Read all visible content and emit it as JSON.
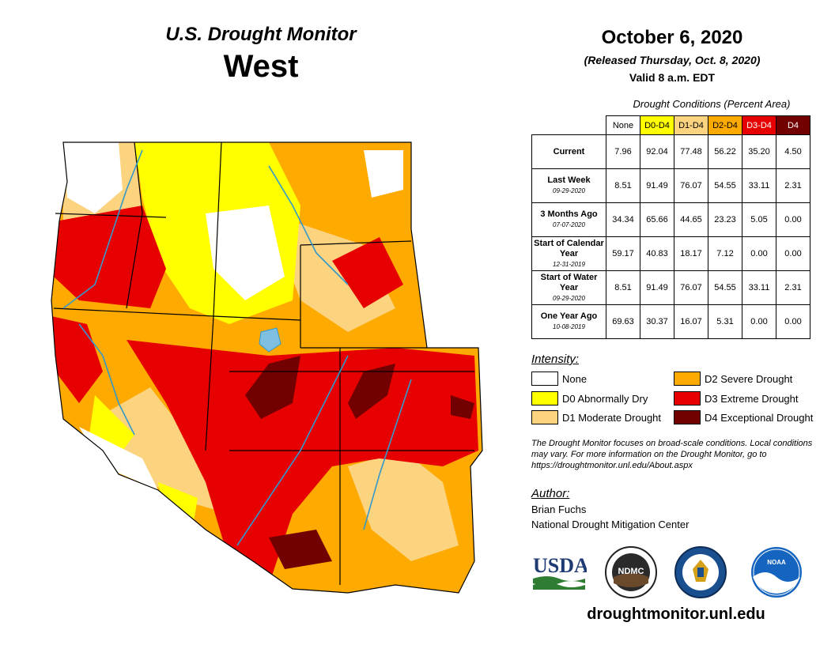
{
  "header": {
    "program": "U.S. Drought Monitor",
    "region": "West"
  },
  "date": {
    "main": "October 6, 2020",
    "released": "(Released Thursday, Oct. 8, 2020)",
    "valid": "Valid 8 a.m. EDT"
  },
  "stats": {
    "caption": "Drought Conditions (Percent Area)",
    "columns": [
      "None",
      "D0-D4",
      "D1-D4",
      "D2-D4",
      "D3-D4",
      "D4"
    ],
    "column_colors": [
      "#ffffff",
      "#ffff00",
      "#fcd37f",
      "#ffaa00",
      "#e60000",
      "#730000"
    ],
    "rows": [
      {
        "label": "Current",
        "date": "",
        "values": [
          "7.96",
          "92.04",
          "77.48",
          "56.22",
          "35.20",
          "4.50"
        ]
      },
      {
        "label": "Last Week",
        "date": "09-29-2020",
        "values": [
          "8.51",
          "91.49",
          "76.07",
          "54.55",
          "33.11",
          "2.31"
        ]
      },
      {
        "label": "3 Months Ago",
        "date": "07-07-2020",
        "values": [
          "34.34",
          "65.66",
          "44.65",
          "23.23",
          "5.05",
          "0.00"
        ]
      },
      {
        "label": "Start of Calendar Year",
        "date": "12-31-2019",
        "values": [
          "59.17",
          "40.83",
          "18.17",
          "7.12",
          "0.00",
          "0.00"
        ]
      },
      {
        "label": "Start of Water Year",
        "date": "09-29-2020",
        "values": [
          "8.51",
          "91.49",
          "76.07",
          "54.55",
          "33.11",
          "2.31"
        ]
      },
      {
        "label": "One Year Ago",
        "date": "10-08-2019",
        "values": [
          "69.63",
          "30.37",
          "16.07",
          "5.31",
          "0.00",
          "0.00"
        ]
      }
    ]
  },
  "legend": {
    "title": "Intensity:",
    "items": [
      {
        "label": "None",
        "color": "#ffffff"
      },
      {
        "label": "D0 Abnormally Dry",
        "color": "#ffff00"
      },
      {
        "label": "D1 Moderate Drought",
        "color": "#fcd37f"
      },
      {
        "label": "D2 Severe Drought",
        "color": "#ffaa00"
      },
      {
        "label": "D3 Extreme Drought",
        "color": "#e60000"
      },
      {
        "label": "D4 Exceptional Drought",
        "color": "#730000"
      }
    ]
  },
  "note": "The Drought Monitor focuses on broad-scale conditions. Local conditions may vary. For more information on the Drought Monitor, go to https://droughtmonitor.unl.edu/About.aspx",
  "author": {
    "title": "Author:",
    "name": "Brian Fuchs",
    "org": "National Drought Mitigation Center"
  },
  "logos": {
    "usda": "USDA",
    "ndmc": "NDMC",
    "noaa": "NOAA",
    "commerce_icon": "eagle-seal-icon"
  },
  "website": "droughtmonitor.unl.edu"
}
